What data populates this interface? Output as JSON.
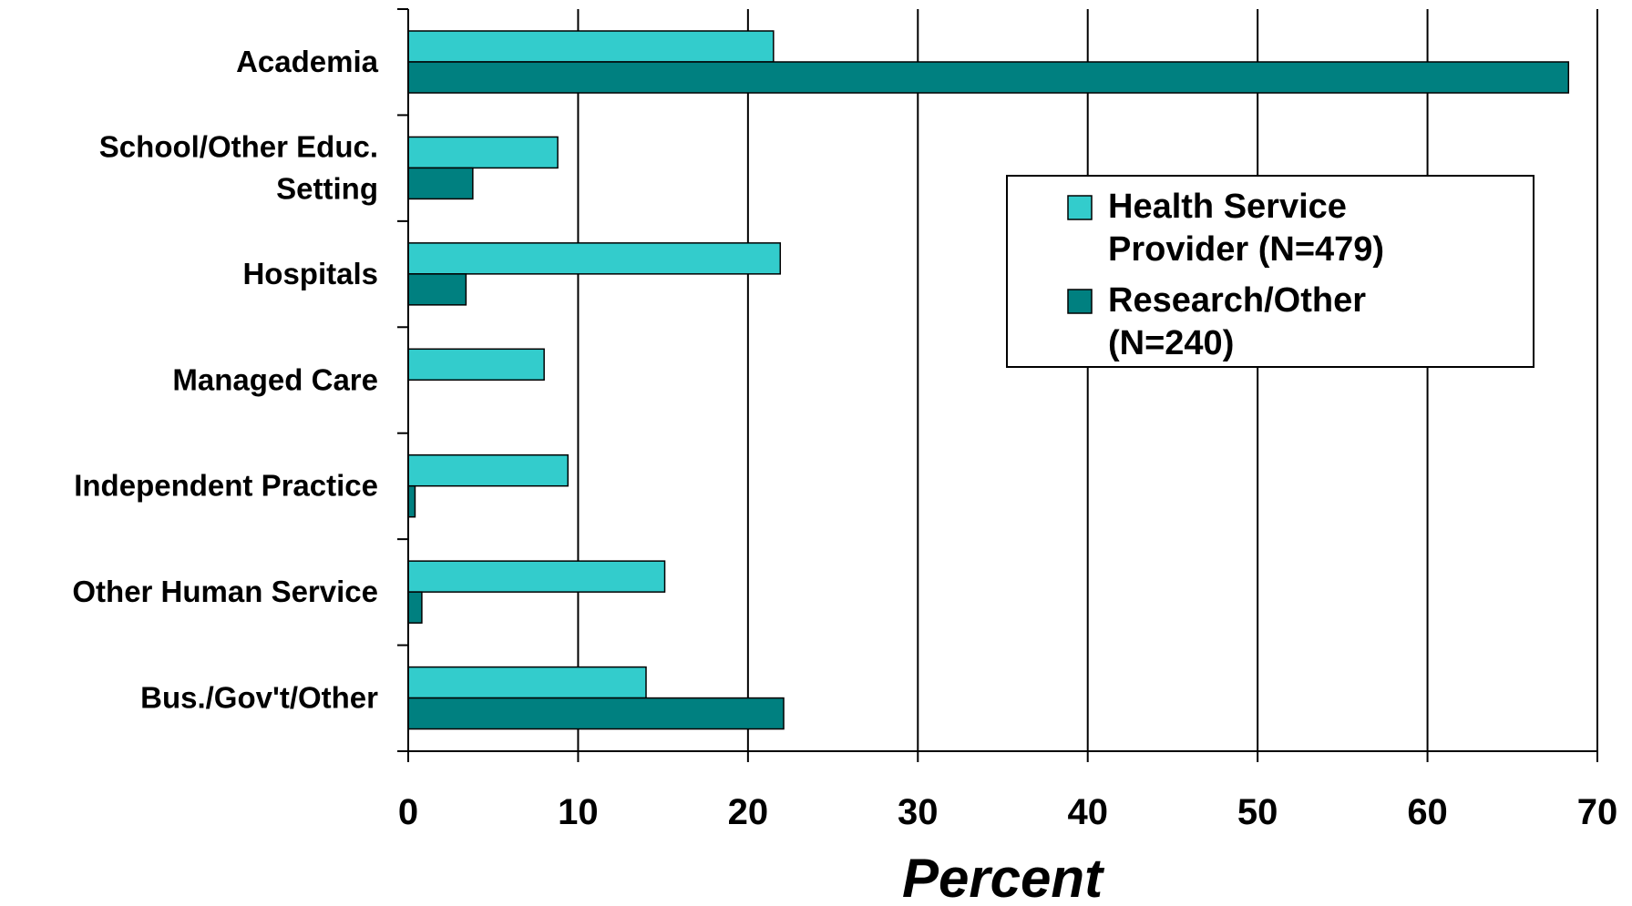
{
  "chart_data": {
    "type": "bar",
    "orientation": "horizontal",
    "categories": [
      [
        "Academia"
      ],
      [
        "School/Other Educ.",
        "Setting"
      ],
      [
        "Hospitals"
      ],
      [
        "Managed Care"
      ],
      [
        "Independent Practice"
      ],
      [
        "Other Human Service"
      ],
      [
        "Bus./Gov't/Other"
      ]
    ],
    "series": [
      {
        "name_lines": [
          "Health Service",
          "Provider (N=479)"
        ],
        "color": "#33CCCC",
        "values": [
          21.5,
          8.8,
          21.9,
          8.0,
          9.4,
          15.1,
          14.0
        ]
      },
      {
        "name_lines": [
          "Research/Other",
          "(N=240)"
        ],
        "color": "#008080",
        "values": [
          68.3,
          3.8,
          3.4,
          0,
          0.4,
          0.8,
          22.1
        ]
      }
    ],
    "xlabel": "Percent",
    "xlim": [
      0,
      70
    ],
    "xticks": [
      "0",
      "10",
      "20",
      "30",
      "40",
      "50",
      "60",
      "70"
    ],
    "grid": "vertical",
    "legend_position": "upper-right"
  }
}
